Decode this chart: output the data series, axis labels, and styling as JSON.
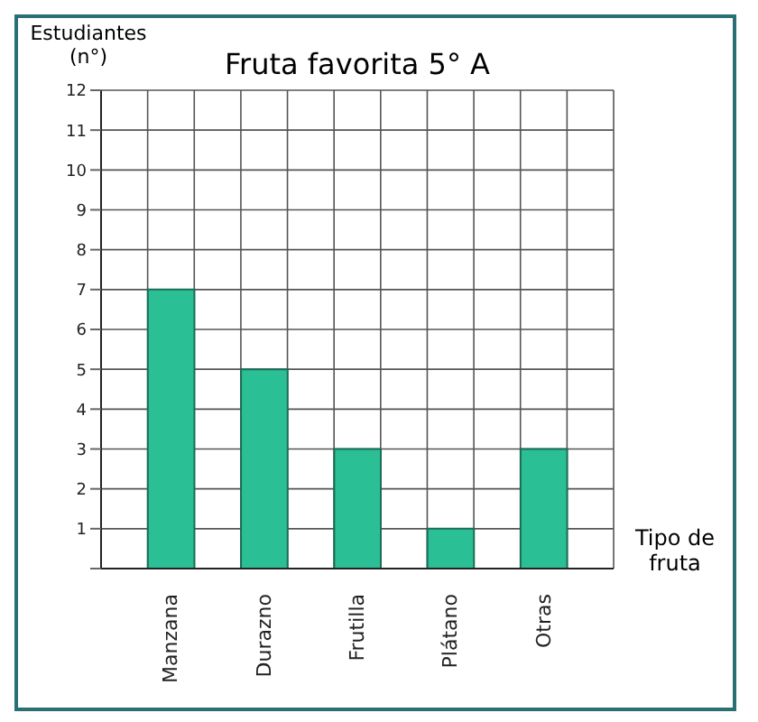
{
  "chart_data": {
    "type": "bar",
    "title": "Fruta favorita  5° A",
    "ylabel": "Estudiantes (n°)",
    "xlabel": "Tipo de fruta",
    "categories": [
      "Manzana",
      "Durazno",
      "Frutilla",
      "Plátano",
      "Otras"
    ],
    "values": [
      7,
      5,
      3,
      1,
      3
    ],
    "color": "#2bbf96",
    "ylim": [
      0,
      12
    ],
    "yticks": [
      {
        "value": 0,
        "label": null
      },
      1,
      2,
      3,
      4,
      5,
      6,
      7,
      8,
      9,
      10,
      11,
      12
    ],
    "grid": true
  }
}
